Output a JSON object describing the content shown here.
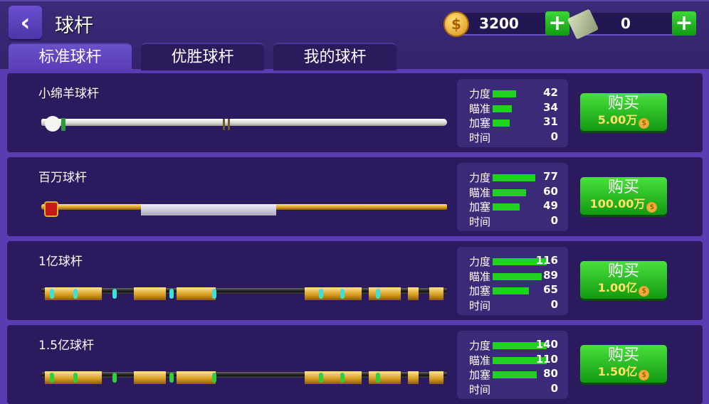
{
  "header": {
    "title": "球杆",
    "coins": "3200",
    "cash": "0"
  },
  "tabs": [
    {
      "label": "标准球杆",
      "active": true
    },
    {
      "label": "优胜球杆",
      "active": false
    },
    {
      "label": "我的球杆",
      "active": false
    }
  ],
  "stat_labels": [
    "力度",
    "瞄准",
    "加塞",
    "时间"
  ],
  "buy_label": "购买",
  "colors": {
    "bar": "#1fd21f",
    "buy_button": "#2fbf2a",
    "background": "#5a3cb2",
    "card": "#2b1a5e"
  },
  "cues": [
    {
      "name": "小绵羊球杆",
      "stats": [
        42,
        34,
        31,
        0
      ],
      "price": "5.00万",
      "style": "white"
    },
    {
      "name": "百万球杆",
      "stats": [
        77,
        60,
        49,
        0
      ],
      "price": "100.00万",
      "style": "gold"
    },
    {
      "name": "1亿球杆",
      "stats": [
        116,
        89,
        65,
        0
      ],
      "price": "1.00亿",
      "style": "gold-cyan"
    },
    {
      "name": "1.5亿球杆",
      "stats": [
        140,
        110,
        80,
        0
      ],
      "price": "1.50亿",
      "style": "gold-green"
    }
  ]
}
